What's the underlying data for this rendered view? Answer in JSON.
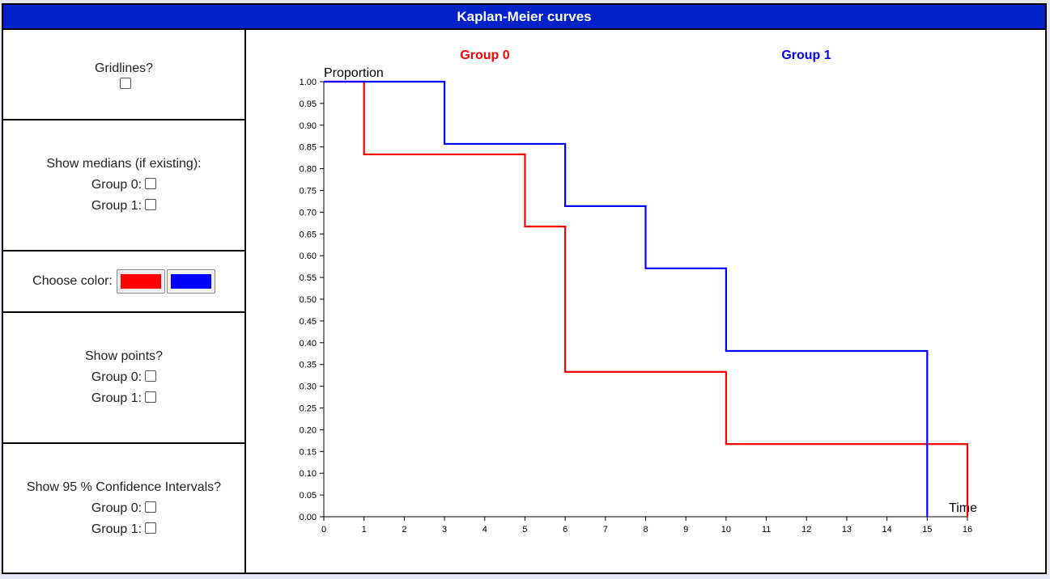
{
  "title": "Kaplan-Meier curves",
  "colors": {
    "group0": "#ff0000",
    "group1": "#0000ff",
    "header": "#0022c8"
  },
  "sidebar": {
    "gridlines": {
      "label": "Gridlines?"
    },
    "medians": {
      "label": "Show medians (if existing):",
      "group0": "Group 0:",
      "group1": "Group 1:"
    },
    "color": {
      "label": "Choose color:"
    },
    "points": {
      "label": "Show points?",
      "group0": "Group 0:",
      "group1": "Group 1:"
    },
    "ci": {
      "label": "Show 95 % Confidence Intervals?",
      "group0": "Group 0:",
      "group1": "Group 1:"
    }
  },
  "chart_data": {
    "type": "line",
    "step": true,
    "xlabel": "Time",
    "ylabel": "Proportion",
    "xlim": [
      0,
      16
    ],
    "ylim": [
      0,
      1
    ],
    "xticks": [
      0,
      1,
      2,
      3,
      4,
      5,
      6,
      7,
      8,
      9,
      10,
      11,
      12,
      13,
      14,
      15,
      16
    ],
    "yticks": [
      "0.00",
      "0.05",
      "0.10",
      "0.15",
      "0.20",
      "0.25",
      "0.30",
      "0.35",
      "0.40",
      "0.45",
      "0.50",
      "0.55",
      "0.60",
      "0.65",
      "0.70",
      "0.75",
      "0.80",
      "0.85",
      "0.90",
      "0.95",
      "1.00"
    ],
    "grid": false,
    "series": [
      {
        "name": "Group 0",
        "color": "#ff0000",
        "x": [
          0,
          1,
          5,
          6,
          10,
          16
        ],
        "y": [
          1.0,
          0.833,
          0.667,
          0.333,
          0.167,
          0.0
        ]
      },
      {
        "name": "Group 1",
        "color": "#0000ff",
        "x": [
          0,
          3,
          6,
          8,
          10,
          15
        ],
        "y": [
          1.0,
          0.857,
          0.714,
          0.571,
          0.381,
          0.0
        ]
      }
    ]
  }
}
